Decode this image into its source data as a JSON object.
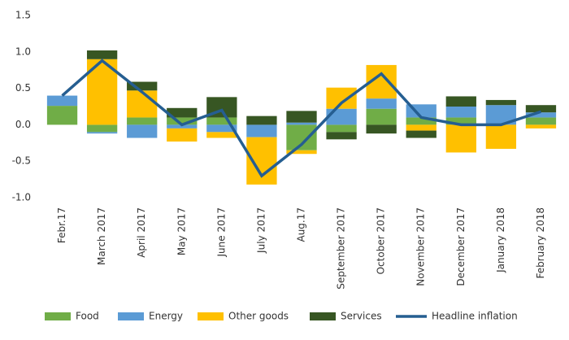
{
  "chart_data": {
    "type": "bar",
    "categories": [
      "Febr.17",
      "March 2017",
      "April 2017",
      "May 2017",
      "June 2017",
      "July 2017",
      "Aug.17",
      "September 2017",
      "October 2017",
      "November 2017",
      "December 2017",
      "January 2018",
      "February 2018"
    ],
    "series": [
      {
        "name": "Food",
        "color": "#70ad47",
        "values": [
          0.26,
          -0.1,
          0.1,
          0.1,
          0.1,
          0,
          -0.35,
          -0.1,
          0.22,
          0.1,
          0.1,
          0,
          0.1
        ]
      },
      {
        "name": "Energy",
        "color": "#5b9bd5",
        "values": [
          0.14,
          -0.02,
          -0.18,
          -0.05,
          -0.1,
          -0.17,
          0.03,
          0.22,
          0.14,
          0.18,
          0.15,
          0.27,
          0.07
        ]
      },
      {
        "name": "Other goods",
        "color": "#ffc000",
        "values": [
          0,
          0.9,
          0.37,
          -0.18,
          -0.08,
          -0.65,
          -0.05,
          0.29,
          0.46,
          -0.08,
          -0.38,
          -0.33,
          -0.05
        ]
      },
      {
        "name": "Services",
        "color": "#375623",
        "values": [
          0,
          0.12,
          0.12,
          0.13,
          0.28,
          0.12,
          0.16,
          -0.1,
          -0.12,
          -0.1,
          0.14,
          0.07,
          0.1
        ]
      },
      {
        "name": "Headline inflation",
        "type": "line",
        "color": "#255e91",
        "values": [
          0.4,
          0.88,
          0.45,
          0.0,
          0.2,
          -0.7,
          -0.27,
          0.3,
          0.7,
          0.1,
          0.0,
          0.0,
          0.18
        ]
      }
    ],
    "ylim": [
      -1.0,
      1.5
    ],
    "yticks": [
      {
        "value": -1,
        "label": "-1.0"
      },
      -0.5,
      {
        "value": 0,
        "label": "0.0"
      },
      0.5,
      {
        "value": 1,
        "label": "1.0"
      },
      1.5
    ],
    "grid": false,
    "legend": "bottom"
  }
}
